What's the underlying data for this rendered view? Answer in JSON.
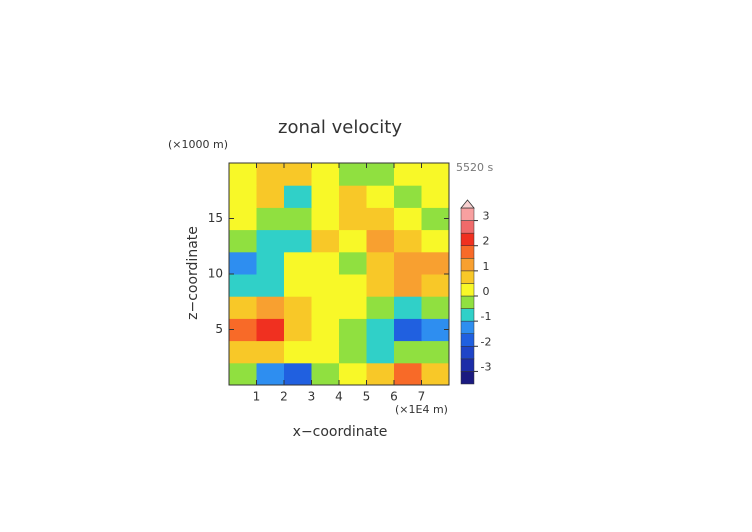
{
  "chart_data": {
    "type": "contour",
    "title": "zonal velocity",
    "time_label": "5520 s",
    "xlabel": "x−coordinate",
    "ylabel": "z−coordinate",
    "x_unit": "(×1E4 m)",
    "y_unit": "(×1000 m)",
    "xlim": [
      0,
      8
    ],
    "ylim": [
      0,
      20
    ],
    "xticks": [
      1,
      2,
      3,
      4,
      5,
      6,
      7
    ],
    "yticks": [
      5,
      10,
      15
    ],
    "x": [
      0.5,
      1.5,
      2.5,
      3.5,
      4.5,
      5.5,
      6.5,
      7.5
    ],
    "y": [
      1,
      3,
      5,
      7,
      9,
      11,
      13,
      15,
      17,
      19
    ],
    "z": [
      [
        -0.5,
        -1.5,
        -2,
        -0.5,
        0.3,
        0.8,
        1.8,
        0.5
      ],
      [
        0.5,
        0.8,
        0.3,
        0.2,
        -0.2,
        -0.8,
        -0.5,
        -0.3
      ],
      [
        1.5,
        2,
        0.8,
        0.3,
        -0.3,
        -0.8,
        -1.8,
        -1.3
      ],
      [
        0.8,
        1,
        0.5,
        0.2,
        0,
        -0.4,
        -0.8,
        -0.5
      ],
      [
        -0.6,
        -0.8,
        0.3,
        0.2,
        0,
        0.5,
        1,
        0.8
      ],
      [
        -1.2,
        -0.6,
        0.2,
        0.4,
        -0.3,
        0.8,
        1.2,
        1
      ],
      [
        -0.4,
        -1,
        -0.8,
        0.5,
        0.2,
        1,
        0.6,
        0.3
      ],
      [
        0.3,
        -0.3,
        -0.5,
        0.2,
        0.5,
        0.8,
        0,
        -0.5
      ],
      [
        0.3,
        0.5,
        -0.6,
        0.2,
        0.7,
        0.3,
        -0.3,
        0
      ],
      [
        0.3,
        0.8,
        0.8,
        0.3,
        -0.4,
        -0.3,
        0.2,
        0.3
      ]
    ],
    "levels": [
      -3.5,
      -3,
      -2.5,
      -2,
      -1.5,
      -1,
      -0.5,
      0,
      0.5,
      1,
      1.5,
      2,
      2.5,
      3,
      3.5
    ],
    "colors": [
      "#1a1a80",
      "#1c2da8",
      "#1f45c8",
      "#2060e0",
      "#2e8ef0",
      "#30d0c8",
      "#90e040",
      "#f8f828",
      "#f8c828",
      "#f8a030",
      "#f86a28",
      "#f03020",
      "#f06a6a",
      "#f8a0a0"
    ],
    "extend_color": "#f8d0d0",
    "cbar_ticks": [
      -3,
      -2,
      -1,
      0,
      1,
      2,
      3
    ]
  }
}
